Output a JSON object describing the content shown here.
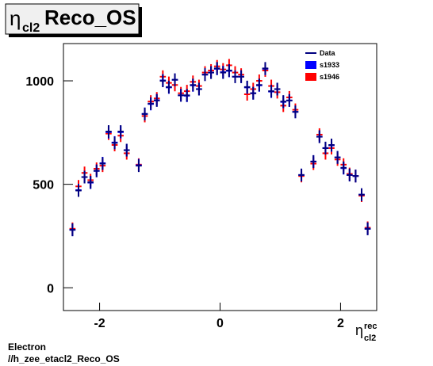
{
  "chart_data": {
    "type": "errorcross",
    "title_symbol": "η",
    "title_subscript": "cl2",
    "title": "Reco_OS",
    "xlabel_symbol": "η",
    "xlabel_superscript": "rec",
    "xlabel_subscript": "cl2",
    "footer": [
      "Electron",
      "//h_zee_etacl2_Reco_OS"
    ],
    "x": [
      -2.45,
      -2.35,
      -2.25,
      -2.15,
      -2.05,
      -1.95,
      -1.85,
      -1.75,
      -1.65,
      -1.55,
      -1.45,
      -1.35,
      -1.25,
      -1.15,
      -1.05,
      -0.95,
      -0.85,
      -0.75,
      -0.65,
      -0.55,
      -0.45,
      -0.35,
      -0.25,
      -0.15,
      -0.05,
      0.05,
      0.15,
      0.25,
      0.35,
      0.45,
      0.55,
      0.65,
      0.75,
      0.85,
      0.95,
      1.05,
      1.15,
      1.25,
      1.35,
      1.45,
      1.55,
      1.65,
      1.75,
      1.85,
      1.95,
      2.05,
      2.15,
      2.25,
      2.35,
      2.45
    ],
    "bin_width": 0.1,
    "series": [
      {
        "name": "s1946",
        "color": "#ff0000",
        "marker": "box",
        "values": [
          285,
          490,
          555,
          520,
          575,
          590,
          745,
          690,
          735,
          650,
          null,
          595,
          830,
          900,
          915,
          1020,
          990,
          980,
          940,
          950,
          995,
          975,
          1040,
          1050,
          1070,
          1055,
          1075,
          1040,
          1030,
          935,
          960,
          1000,
          1050,
          975,
          945,
          880,
          920,
          860,
          540,
          null,
          600,
          740,
          650,
          675,
          620,
          595,
          550,
          540,
          445,
          290
        ]
      },
      {
        "name": "s1933",
        "color": "#0000ff",
        "marker": "box",
        "values": [
          280,
          472,
          535,
          508,
          565,
          602,
          752,
          702,
          752,
          665,
          null,
          592,
          840,
          888,
          906,
          1002,
          968,
          1005,
          930,
          928,
          978,
          960,
          1030,
          1040,
          1058,
          1042,
          1048,
          1020,
          1020,
          968,
          940,
          978,
          1058,
          948,
          960,
          898,
          905,
          850,
          545,
          null,
          610,
          730,
          675,
          688,
          630,
          578,
          545,
          540,
          450,
          285
        ]
      },
      {
        "name": "Data",
        "color": "#000080",
        "marker": "line",
        "values": [
          280,
          470,
          535,
          510,
          565,
          600,
          755,
          700,
          755,
          665,
          null,
          590,
          840,
          890,
          905,
          1000,
          970,
          1005,
          930,
          930,
          980,
          960,
          1030,
          1040,
          1060,
          1040,
          1050,
          1020,
          1020,
          970,
          940,
          980,
          1060,
          950,
          960,
          900,
          905,
          850,
          545,
          null,
          610,
          730,
          675,
          690,
          630,
          580,
          545,
          540,
          450,
          285
        ]
      }
    ],
    "xlim": [
      -2.6,
      2.6
    ],
    "ylim": [
      -110,
      1180
    ],
    "xticks": [
      -2,
      0,
      2
    ],
    "yticks": [
      0,
      500,
      1000
    ]
  }
}
